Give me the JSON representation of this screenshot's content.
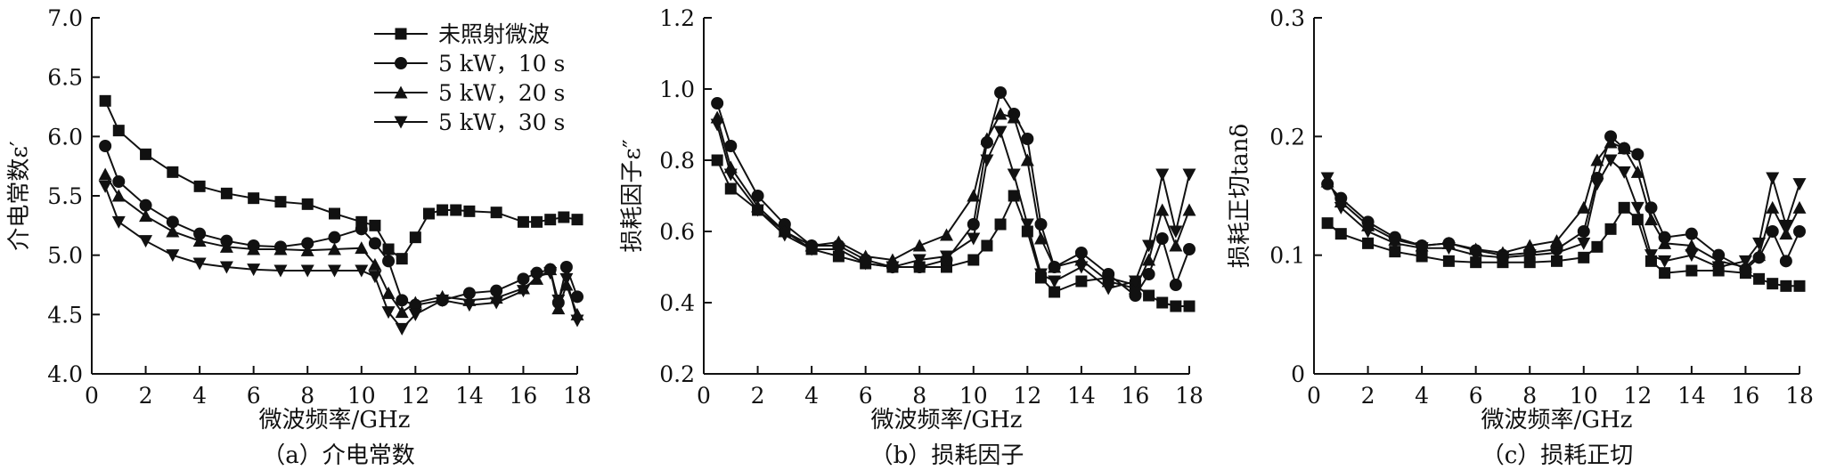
{
  "chart_data": [
    {
      "type": "line",
      "title": "（a）介电常数",
      "xlabel": "微波频率/GHz",
      "ylabel": "介电常数ε′",
      "xlim": [
        0,
        18
      ],
      "ylim": [
        4.0,
        7.0
      ],
      "xticks": [
        0,
        2,
        4,
        6,
        8,
        10,
        12,
        14,
        16,
        18
      ],
      "yticks": [
        4.0,
        4.5,
        5.0,
        5.5,
        6.0,
        6.5,
        7.0
      ],
      "ytick_labels": [
        "4.0",
        "4.5",
        "5.0",
        "5.5",
        "6.0",
        "6.5",
        "7.0"
      ],
      "grid": false,
      "legend": "top-right",
      "series": [
        {
          "name": "未照射微波",
          "marker": "square",
          "x": [
            0.5,
            1,
            2,
            3,
            4,
            5,
            6,
            7,
            8,
            9,
            10,
            10.5,
            11,
            11.5,
            12,
            12.5,
            13,
            13.5,
            14,
            15,
            16,
            16.5,
            17,
            17.5,
            18
          ],
          "y": [
            6.3,
            6.05,
            5.85,
            5.7,
            5.58,
            5.52,
            5.48,
            5.45,
            5.43,
            5.35,
            5.28,
            5.25,
            5.05,
            4.97,
            5.15,
            5.35,
            5.38,
            5.38,
            5.37,
            5.36,
            5.28,
            5.28,
            5.3,
            5.32,
            5.3
          ]
        },
        {
          "name": "5 kW，10 s",
          "marker": "circle",
          "x": [
            0.5,
            1,
            2,
            3,
            4,
            5,
            6,
            7,
            8,
            9,
            10,
            10.5,
            11,
            11.5,
            12,
            13,
            14,
            15,
            16,
            16.5,
            17,
            17.3,
            17.6,
            18
          ],
          "y": [
            5.92,
            5.62,
            5.42,
            5.28,
            5.18,
            5.12,
            5.08,
            5.07,
            5.1,
            5.15,
            5.22,
            5.1,
            4.95,
            4.62,
            4.58,
            4.62,
            4.68,
            4.7,
            4.8,
            4.85,
            4.88,
            4.6,
            4.9,
            4.65
          ]
        },
        {
          "name": "5 kW，20 s",
          "marker": "triangle-up",
          "x": [
            0.5,
            1,
            2,
            3,
            4,
            5,
            6,
            7,
            8,
            9,
            10,
            10.5,
            11,
            11.5,
            12,
            13,
            14,
            15,
            16,
            16.5,
            17,
            17.3,
            17.6,
            18
          ],
          "y": [
            5.68,
            5.5,
            5.33,
            5.2,
            5.12,
            5.07,
            5.05,
            5.05,
            5.04,
            5.05,
            5.06,
            4.92,
            4.68,
            4.52,
            4.6,
            4.65,
            4.62,
            4.64,
            4.72,
            4.8,
            4.88,
            4.55,
            4.75,
            4.5
          ]
        },
        {
          "name": "5 kW，30 s",
          "marker": "triangle-down",
          "x": [
            0.5,
            1,
            2,
            3,
            4,
            5,
            6,
            7,
            8,
            9,
            10,
            10.5,
            11,
            11.5,
            12,
            13,
            14,
            15,
            16,
            16.5,
            17,
            17.3,
            17.6,
            18
          ],
          "y": [
            5.58,
            5.28,
            5.12,
            5.0,
            4.93,
            4.9,
            4.88,
            4.87,
            4.87,
            4.87,
            4.87,
            4.82,
            4.52,
            4.38,
            4.5,
            4.62,
            4.58,
            4.6,
            4.7,
            4.82,
            4.85,
            4.62,
            4.8,
            4.45
          ]
        }
      ]
    },
    {
      "type": "line",
      "title": "（b）损耗因子",
      "xlabel": "微波频率/GHz",
      "ylabel": "损耗因子ε″",
      "xlim": [
        0,
        18
      ],
      "ylim": [
        0.2,
        1.2
      ],
      "xticks": [
        0,
        2,
        4,
        6,
        8,
        10,
        12,
        14,
        16,
        18
      ],
      "yticks": [
        0.2,
        0.4,
        0.6,
        0.8,
        1.0,
        1.2
      ],
      "ytick_labels": [
        "0.2",
        "0.4",
        "0.6",
        "0.8",
        "1.0",
        "1.2"
      ],
      "grid": false,
      "series": [
        {
          "name": "未照射微波",
          "marker": "square",
          "x": [
            0.5,
            1,
            2,
            3,
            4,
            5,
            6,
            7,
            8,
            9,
            10,
            10.5,
            11,
            11.5,
            12,
            12.5,
            13,
            14,
            15,
            16,
            16.5,
            17,
            17.5,
            18
          ],
          "y": [
            0.8,
            0.72,
            0.66,
            0.6,
            0.55,
            0.53,
            0.51,
            0.5,
            0.5,
            0.5,
            0.52,
            0.56,
            0.62,
            0.7,
            0.6,
            0.47,
            0.43,
            0.46,
            0.47,
            0.45,
            0.42,
            0.4,
            0.39,
            0.39
          ]
        },
        {
          "name": "5 kW，10 s",
          "marker": "circle",
          "x": [
            0.5,
            1,
            2,
            3,
            4,
            5,
            6,
            7,
            8,
            9,
            10,
            10.5,
            11,
            11.5,
            12,
            12.5,
            13,
            14,
            15,
            16,
            16.5,
            17,
            17.5,
            18
          ],
          "y": [
            0.96,
            0.84,
            0.7,
            0.62,
            0.56,
            0.56,
            0.52,
            0.5,
            0.5,
            0.52,
            0.62,
            0.85,
            0.99,
            0.93,
            0.86,
            0.62,
            0.5,
            0.54,
            0.48,
            0.42,
            0.48,
            0.58,
            0.45,
            0.55
          ]
        },
        {
          "name": "5 kW，20 s",
          "marker": "triangle-up",
          "x": [
            0.5,
            1,
            2,
            3,
            4,
            5,
            6,
            7,
            8,
            9,
            10,
            10.5,
            11,
            11.5,
            12,
            12.5,
            13,
            14,
            15,
            16,
            16.5,
            17,
            17.5,
            18
          ],
          "y": [
            0.92,
            0.78,
            0.67,
            0.6,
            0.56,
            0.57,
            0.53,
            0.52,
            0.56,
            0.59,
            0.7,
            0.86,
            0.93,
            0.92,
            0.8,
            0.58,
            0.5,
            0.52,
            0.46,
            0.44,
            0.52,
            0.66,
            0.56,
            0.66
          ]
        },
        {
          "name": "5 kW，30 s",
          "marker": "triangle-down",
          "x": [
            0.5,
            1,
            2,
            3,
            4,
            5,
            6,
            7,
            8,
            9,
            10,
            10.5,
            11,
            11.5,
            12,
            12.5,
            13,
            14,
            15,
            16,
            16.5,
            17,
            17.5,
            18
          ],
          "y": [
            0.9,
            0.76,
            0.66,
            0.59,
            0.55,
            0.55,
            0.51,
            0.5,
            0.52,
            0.53,
            0.58,
            0.8,
            0.88,
            0.76,
            0.62,
            0.48,
            0.46,
            0.5,
            0.44,
            0.46,
            0.56,
            0.76,
            0.6,
            0.76
          ]
        }
      ]
    },
    {
      "type": "line",
      "title": "（c）损耗正切",
      "xlabel": "微波频率/GHz",
      "ylabel": "损耗正切tanδ",
      "xlim": [
        0,
        18
      ],
      "ylim": [
        0,
        0.3
      ],
      "xticks": [
        0,
        2,
        4,
        6,
        8,
        10,
        12,
        14,
        16,
        18
      ],
      "yticks": [
        0,
        0.1,
        0.2,
        0.3
      ],
      "ytick_labels": [
        "0",
        "0.1",
        "0.2",
        "0.3"
      ],
      "grid": false,
      "series": [
        {
          "name": "未照射微波",
          "marker": "square",
          "x": [
            0.5,
            1,
            2,
            3,
            4,
            5,
            6,
            7,
            8,
            9,
            10,
            10.5,
            11,
            11.5,
            12,
            12.5,
            13,
            14,
            15,
            16,
            16.5,
            17,
            17.5,
            18
          ],
          "y": [
            0.127,
            0.118,
            0.11,
            0.103,
            0.099,
            0.095,
            0.094,
            0.094,
            0.094,
            0.095,
            0.098,
            0.107,
            0.122,
            0.14,
            0.13,
            0.095,
            0.085,
            0.087,
            0.087,
            0.085,
            0.08,
            0.076,
            0.074,
            0.074
          ]
        },
        {
          "name": "5 kW，10 s",
          "marker": "circle",
          "x": [
            0.5,
            1,
            2,
            3,
            4,
            5,
            6,
            7,
            8,
            9,
            10,
            10.5,
            11,
            11.5,
            12,
            12.5,
            13,
            14,
            15,
            16,
            16.5,
            17,
            17.5,
            18
          ],
          "y": [
            0.16,
            0.148,
            0.128,
            0.115,
            0.108,
            0.11,
            0.104,
            0.1,
            0.102,
            0.105,
            0.12,
            0.165,
            0.2,
            0.19,
            0.185,
            0.14,
            0.115,
            0.118,
            0.1,
            0.088,
            0.098,
            0.12,
            0.095,
            0.12
          ]
        },
        {
          "name": "5 kW，20 s",
          "marker": "triangle-up",
          "x": [
            0.5,
            1,
            2,
            3,
            4,
            5,
            6,
            7,
            8,
            9,
            10,
            10.5,
            11,
            11.5,
            12,
            12.5,
            13,
            14,
            15,
            16,
            16.5,
            17,
            17.5,
            18
          ],
          "y": [
            0.162,
            0.145,
            0.125,
            0.113,
            0.108,
            0.11,
            0.105,
            0.102,
            0.108,
            0.112,
            0.14,
            0.18,
            0.195,
            0.19,
            0.17,
            0.13,
            0.11,
            0.108,
            0.095,
            0.09,
            0.1,
            0.14,
            0.118,
            0.14
          ]
        },
        {
          "name": "5 kW，30 s",
          "marker": "triangle-down",
          "x": [
            0.5,
            1,
            2,
            3,
            4,
            5,
            6,
            7,
            8,
            9,
            10,
            10.5,
            11,
            11.5,
            12,
            12.5,
            13,
            14,
            15,
            16,
            16.5,
            17,
            17.5,
            18
          ],
          "y": [
            0.165,
            0.14,
            0.12,
            0.11,
            0.106,
            0.106,
            0.1,
            0.098,
            0.1,
            0.102,
            0.11,
            0.16,
            0.18,
            0.17,
            0.14,
            0.1,
            0.095,
            0.1,
            0.09,
            0.095,
            0.11,
            0.165,
            0.125,
            0.16
          ]
        }
      ]
    }
  ]
}
